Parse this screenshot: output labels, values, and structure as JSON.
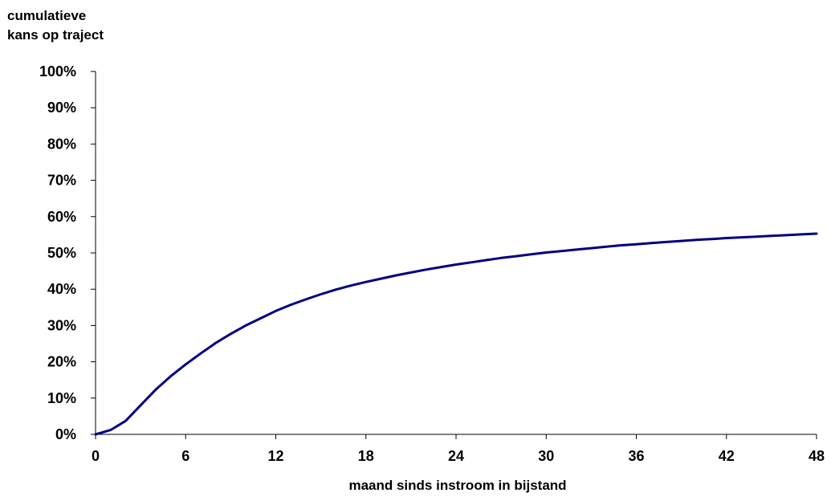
{
  "chart_data": {
    "type": "line",
    "title": "",
    "ylabel_lines": [
      "cumulatieve",
      "kans op traject"
    ],
    "xlabel": "maand sinds instroom in bijstand",
    "x_ticks": [
      0,
      6,
      12,
      18,
      24,
      30,
      36,
      42,
      48
    ],
    "y_ticks": [
      "0%",
      "10%",
      "20%",
      "30%",
      "40%",
      "50%",
      "60%",
      "70%",
      "80%",
      "90%",
      "100%"
    ],
    "xlim": [
      0,
      48
    ],
    "ylim": [
      0,
      1
    ],
    "grid": false,
    "line_color": "#000080",
    "series": [
      {
        "x": [
          0,
          1,
          2,
          3,
          4,
          5,
          6,
          7,
          8,
          9,
          10,
          11,
          12,
          13,
          14,
          15,
          16,
          17,
          18,
          19,
          20,
          21,
          22,
          23,
          24,
          25,
          26,
          27,
          28,
          29,
          30,
          31,
          32,
          33,
          34,
          35,
          36,
          37,
          38,
          39,
          40,
          41,
          42,
          43,
          44,
          45,
          46,
          47,
          48
        ],
        "values": [
          0.0,
          0.012,
          0.037,
          0.08,
          0.123,
          0.16,
          0.193,
          0.223,
          0.252,
          0.277,
          0.3,
          0.32,
          0.34,
          0.357,
          0.372,
          0.386,
          0.399,
          0.41,
          0.42,
          0.429,
          0.438,
          0.446,
          0.454,
          0.461,
          0.468,
          0.474,
          0.48,
          0.486,
          0.491,
          0.496,
          0.501,
          0.505,
          0.509,
          0.513,
          0.517,
          0.521,
          0.524,
          0.527,
          0.53,
          0.533,
          0.536,
          0.538,
          0.541,
          0.543,
          0.545,
          0.547,
          0.549,
          0.551,
          0.553
        ]
      }
    ]
  }
}
